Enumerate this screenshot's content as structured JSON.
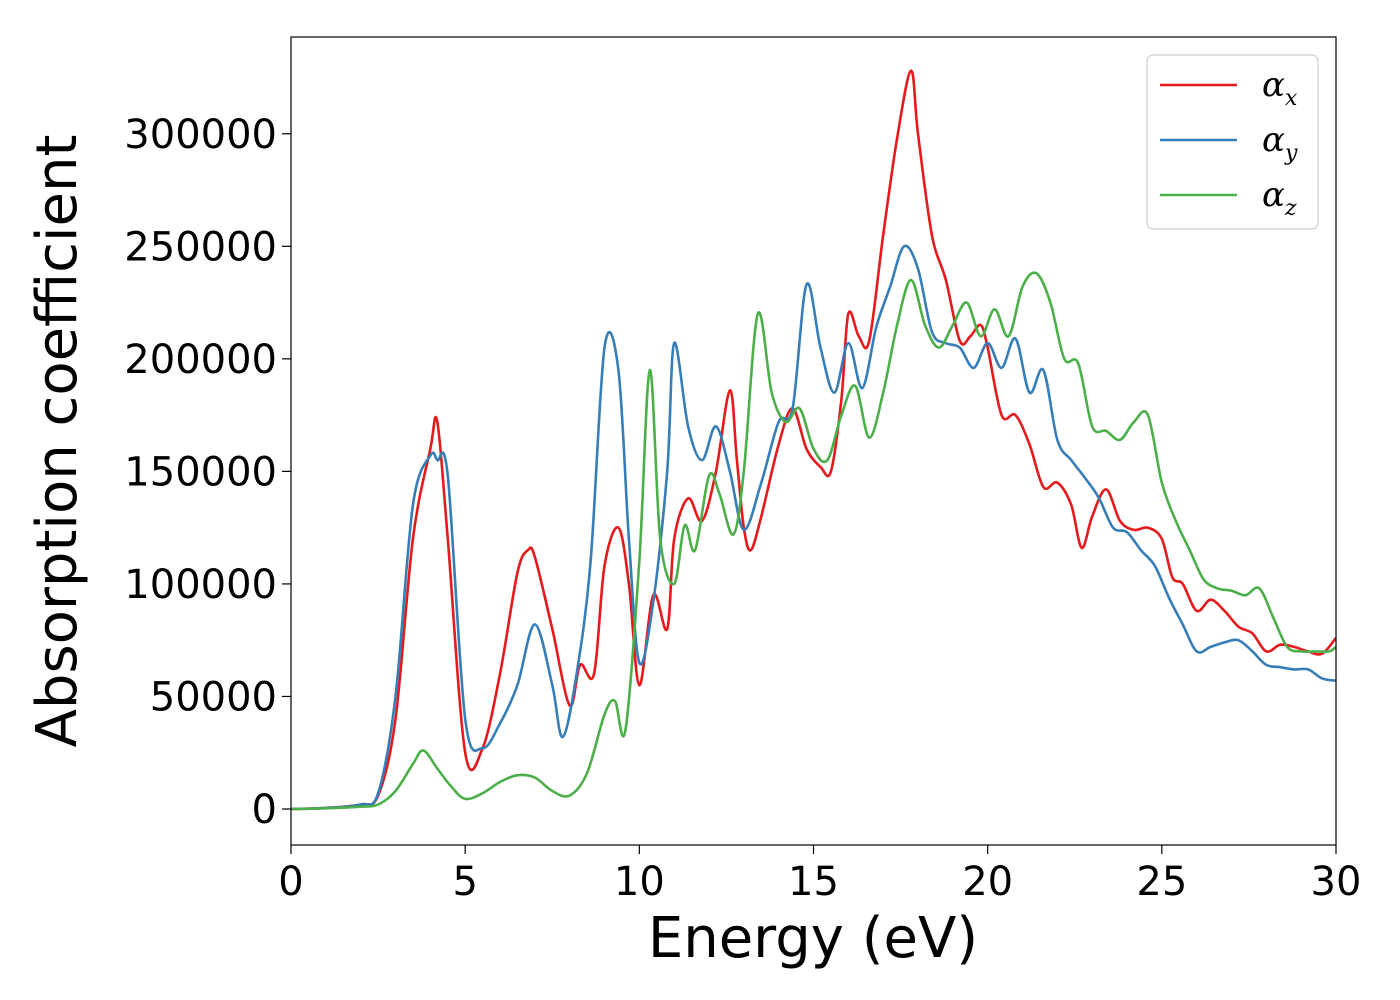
{
  "chart_data": {
    "type": "line",
    "xlabel": "Energy (eV)",
    "ylabel": "Absorption coefficient",
    "xlim": [
      0,
      30
    ],
    "ylim": [
      -16000,
      343000
    ],
    "xticks": [
      0,
      5,
      10,
      15,
      20,
      25,
      30
    ],
    "yticks": [
      0,
      50000,
      100000,
      150000,
      200000,
      250000,
      300000
    ],
    "grid": false,
    "legend_position": "top-right",
    "series": [
      {
        "name": "α",
        "subscript": "x",
        "color": "#e41a1c",
        "x": [
          0,
          1,
          2,
          2.5,
          3,
          3.5,
          4,
          4.2,
          4.5,
          5,
          5.5,
          6,
          6.5,
          6.8,
          7,
          7.5,
          8,
          8.3,
          8.7,
          9,
          9.4,
          9.7,
          10,
          10.4,
          10.8,
          11,
          11.4,
          11.8,
          12.2,
          12.6,
          12.8,
          13,
          13.2,
          13.5,
          14,
          14.4,
          14.8,
          15.2,
          15.5,
          15.8,
          16,
          16.3,
          16.6,
          17,
          17.4,
          17.8,
          18,
          18.4,
          18.8,
          19.2,
          19.5,
          19.8,
          20,
          20.4,
          20.8,
          21.2,
          21.6,
          22,
          22.4,
          22.7,
          23,
          23.4,
          23.8,
          24.2,
          24.6,
          25,
          25.3,
          25.6,
          26,
          26.4,
          26.8,
          27.2,
          27.6,
          28,
          28.4,
          28.8,
          29.2,
          29.6,
          30
        ],
        "y": [
          0,
          500,
          2000,
          6000,
          40000,
          120000,
          160000,
          172000,
          120000,
          25000,
          27000,
          60000,
          105000,
          115000,
          112000,
          80000,
          46000,
          64000,
          60000,
          108000,
          125000,
          100000,
          55000,
          95000,
          80000,
          120000,
          138000,
          128000,
          150000,
          186000,
          155000,
          125000,
          115000,
          130000,
          162000,
          178000,
          160000,
          152000,
          150000,
          182000,
          220000,
          210000,
          208000,
          255000,
          298000,
          328000,
          300000,
          255000,
          235000,
          208000,
          210000,
          215000,
          205000,
          175000,
          175000,
          162000,
          143000,
          145000,
          135000,
          116000,
          130000,
          142000,
          128000,
          124000,
          125000,
          120000,
          103000,
          100000,
          88000,
          93000,
          88000,
          81000,
          78000,
          70000,
          73000,
          72000,
          70000,
          69000,
          76000
        ]
      },
      {
        "name": "α",
        "subscript": "y",
        "color": "#377eb8",
        "x": [
          0,
          1,
          2,
          2.5,
          3,
          3.5,
          4,
          4.2,
          4.5,
          5,
          5.5,
          6,
          6.5,
          7,
          7.5,
          7.8,
          8.2,
          8.6,
          9,
          9.4,
          9.7,
          10,
          10.4,
          10.8,
          11,
          11.4,
          11.8,
          12.2,
          12.6,
          13,
          13.5,
          14,
          14.4,
          14.8,
          15.2,
          15.6,
          16,
          16.4,
          16.8,
          17.2,
          17.6,
          18,
          18.4,
          18.8,
          19.2,
          19.6,
          20,
          20.4,
          20.8,
          21.2,
          21.6,
          22,
          22.4,
          22.8,
          23.2,
          23.6,
          24,
          24.4,
          24.8,
          25.2,
          25.6,
          26,
          26.4,
          26.8,
          27.2,
          27.6,
          28,
          28.4,
          28.8,
          29.2,
          29.6,
          30
        ],
        "y": [
          0,
          500,
          2000,
          7000,
          50000,
          135000,
          157000,
          155000,
          148000,
          40000,
          27000,
          38000,
          55000,
          82000,
          55000,
          32000,
          60000,
          110000,
          205000,
          195000,
          120000,
          65000,
          92000,
          150000,
          207000,
          170000,
          155000,
          170000,
          150000,
          124000,
          145000,
          172000,
          178000,
          233000,
          205000,
          185000,
          207000,
          187000,
          214000,
          232000,
          250000,
          240000,
          212000,
          207000,
          205000,
          196000,
          207000,
          196000,
          209000,
          185000,
          195000,
          164000,
          155000,
          147000,
          138000,
          125000,
          123000,
          115000,
          108000,
          94000,
          82000,
          70000,
          72000,
          74000,
          75000,
          70000,
          64000,
          63000,
          62000,
          62000,
          58000,
          57000
        ]
      },
      {
        "name": "α",
        "subscript": "z",
        "color": "#4daf4a",
        "x": [
          0,
          1,
          2,
          2.5,
          3,
          3.5,
          3.8,
          4.2,
          4.6,
          5,
          5.5,
          6,
          6.5,
          7,
          7.5,
          8,
          8.5,
          9,
          9.3,
          9.6,
          10,
          10.3,
          10.6,
          11,
          11.3,
          11.6,
          12,
          12.3,
          12.7,
          13,
          13.4,
          13.8,
          14.2,
          14.6,
          15,
          15.4,
          15.8,
          16.2,
          16.6,
          17,
          17.4,
          17.8,
          18.2,
          18.6,
          19,
          19.4,
          19.8,
          20.2,
          20.6,
          21,
          21.4,
          21.8,
          22.2,
          22.6,
          23,
          23.4,
          23.8,
          24.2,
          24.6,
          25,
          25.4,
          25.8,
          26.2,
          26.6,
          27,
          27.4,
          27.8,
          28.2,
          28.6,
          29,
          29.4,
          29.8,
          30
        ],
        "y": [
          0,
          300,
          1000,
          2000,
          8000,
          20000,
          26000,
          18000,
          10000,
          4500,
          7000,
          12000,
          15000,
          14000,
          8000,
          6000,
          16000,
          42000,
          48000,
          35000,
          110000,
          195000,
          120000,
          100000,
          126000,
          115000,
          148000,
          140000,
          122000,
          150000,
          220000,
          185000,
          172000,
          178000,
          160000,
          155000,
          175000,
          188000,
          165000,
          185000,
          215000,
          235000,
          215000,
          205000,
          215000,
          225000,
          210000,
          222000,
          210000,
          232000,
          238000,
          225000,
          200000,
          198000,
          170000,
          168000,
          164000,
          172000,
          175000,
          145000,
          128000,
          115000,
          102000,
          98000,
          97000,
          95000,
          98000,
          85000,
          72000,
          70000,
          70000,
          70000,
          72000
        ]
      }
    ]
  }
}
